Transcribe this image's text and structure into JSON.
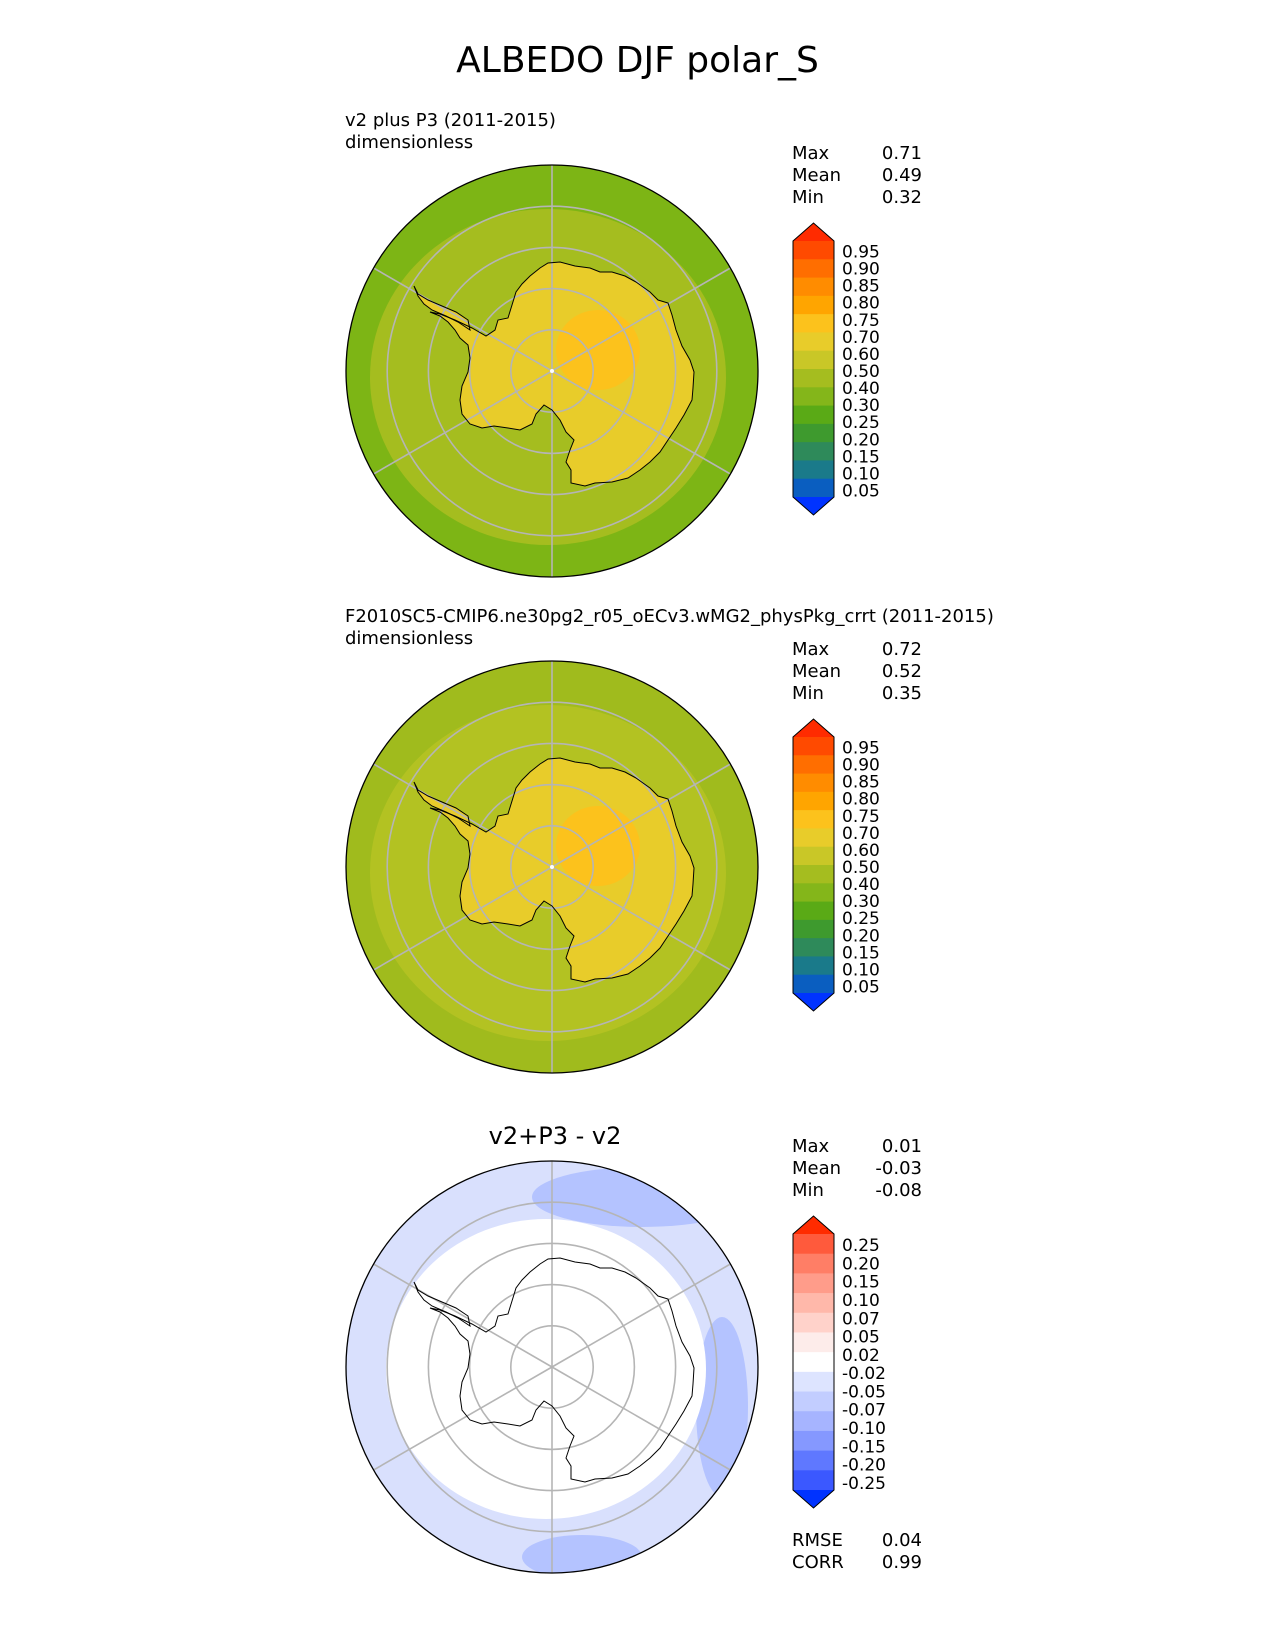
{
  "title": "ALBEDO DJF polar_S",
  "panels": [
    {
      "title": "v2 plus P3 (2011-2015)",
      "units": "dimensionless",
      "stats": [
        {
          "label": "Max",
          "value": "0.71"
        },
        {
          "label": "Mean",
          "value": "0.49"
        },
        {
          "label": "Min",
          "value": "0.32"
        }
      ]
    },
    {
      "title": "F2010SC5-CMIP6.ne30pg2_r05_oECv3.wMG2_physPkg_crrt (2011-2015)",
      "units": "dimensionless",
      "stats": [
        {
          "label": "Max",
          "value": "0.72"
        },
        {
          "label": "Mean",
          "value": "0.52"
        },
        {
          "label": "Min",
          "value": "0.35"
        }
      ]
    },
    {
      "title": "v2+P3 - v2",
      "stats": [
        {
          "label": "Max",
          "value": "0.01"
        },
        {
          "label": "Mean",
          "value": "-0.03"
        },
        {
          "label": "Min",
          "value": "-0.08"
        }
      ],
      "metrics": [
        {
          "label": "RMSE",
          "value": "0.04"
        },
        {
          "label": "CORR",
          "value": "0.99"
        }
      ]
    }
  ],
  "chart_data": [
    {
      "type": "polar-contour-map",
      "title": "v2 plus P3 (2011-2015)",
      "units": "dimensionless",
      "projection": "south polar stereographic",
      "max": 0.71,
      "mean": 0.49,
      "min": 0.32,
      "colorbar_ticks": [
        "0.95",
        "0.90",
        "0.85",
        "0.80",
        "0.75",
        "0.70",
        "0.60",
        "0.50",
        "0.40",
        "0.30",
        "0.25",
        "0.20",
        "0.15",
        "0.10",
        "0.05"
      ],
      "colorbar_colors": [
        "#ff2b00",
        "#ff4a00",
        "#ff6e00",
        "#ff8c00",
        "#ffa500",
        "#fcc21c",
        "#e8cc2a",
        "#c9c727",
        "#a5bd1f",
        "#84b61a",
        "#5aaa16",
        "#3e9a2e",
        "#2e8a5a",
        "#1a7a8a",
        "#0a5ec0",
        "#0033ff"
      ],
      "colorbar_extend": "both",
      "region_colors": {
        "ocean_outer": "#7db515",
        "ocean_inner": "#a5bd1f",
        "continent": "#e8cc2a",
        "continent_high": "#fcc21c"
      }
    },
    {
      "type": "polar-contour-map",
      "title": "F2010SC5-CMIP6.ne30pg2_r05_oECv3.wMG2_physPkg_crrt (2011-2015)",
      "units": "dimensionless",
      "projection": "south polar stereographic",
      "max": 0.72,
      "mean": 0.52,
      "min": 0.35,
      "colorbar_ticks": [
        "0.95",
        "0.90",
        "0.85",
        "0.80",
        "0.75",
        "0.70",
        "0.60",
        "0.50",
        "0.40",
        "0.30",
        "0.25",
        "0.20",
        "0.15",
        "0.10",
        "0.05"
      ],
      "colorbar_colors": [
        "#ff2b00",
        "#ff4a00",
        "#ff6e00",
        "#ff8c00",
        "#ffa500",
        "#fcc21c",
        "#e8cc2a",
        "#c9c727",
        "#a5bd1f",
        "#84b61a",
        "#5aaa16",
        "#3e9a2e",
        "#2e8a5a",
        "#1a7a8a",
        "#0a5ec0",
        "#0033ff"
      ],
      "colorbar_extend": "both",
      "region_colors": {
        "ocean_outer": "#a0bb1d",
        "ocean_inner": "#b3c222",
        "continent": "#e8cc2a",
        "continent_high": "#fcc21c"
      }
    },
    {
      "type": "polar-contour-map",
      "title": "v2+P3 - v2",
      "projection": "south polar stereographic",
      "max": 0.01,
      "mean": -0.03,
      "min": -0.08,
      "rmse": 0.04,
      "corr": 0.99,
      "colorbar_ticks": [
        "0.25",
        "0.20",
        "0.15",
        "0.10",
        "0.07",
        "0.05",
        "0.02",
        "-0.02",
        "-0.05",
        "-0.07",
        "-0.10",
        "-0.15",
        "-0.20",
        "-0.25"
      ],
      "colorbar_colors": [
        "#ff2b00",
        "#ff5a3c",
        "#ff7e66",
        "#ff9c8a",
        "#ffb8aa",
        "#ffd2ca",
        "#fdecea",
        "#ffffff",
        "#dde4ff",
        "#c2cdff",
        "#a6b4ff",
        "#8598ff",
        "#5f78ff",
        "#3b58ff",
        "#0033ff"
      ],
      "colorbar_extend": "both",
      "region_colors": {
        "ocean_outer": "#d9e0fd",
        "ocean_band": "#b4c3ff",
        "continent": "#ffffff"
      }
    }
  ]
}
